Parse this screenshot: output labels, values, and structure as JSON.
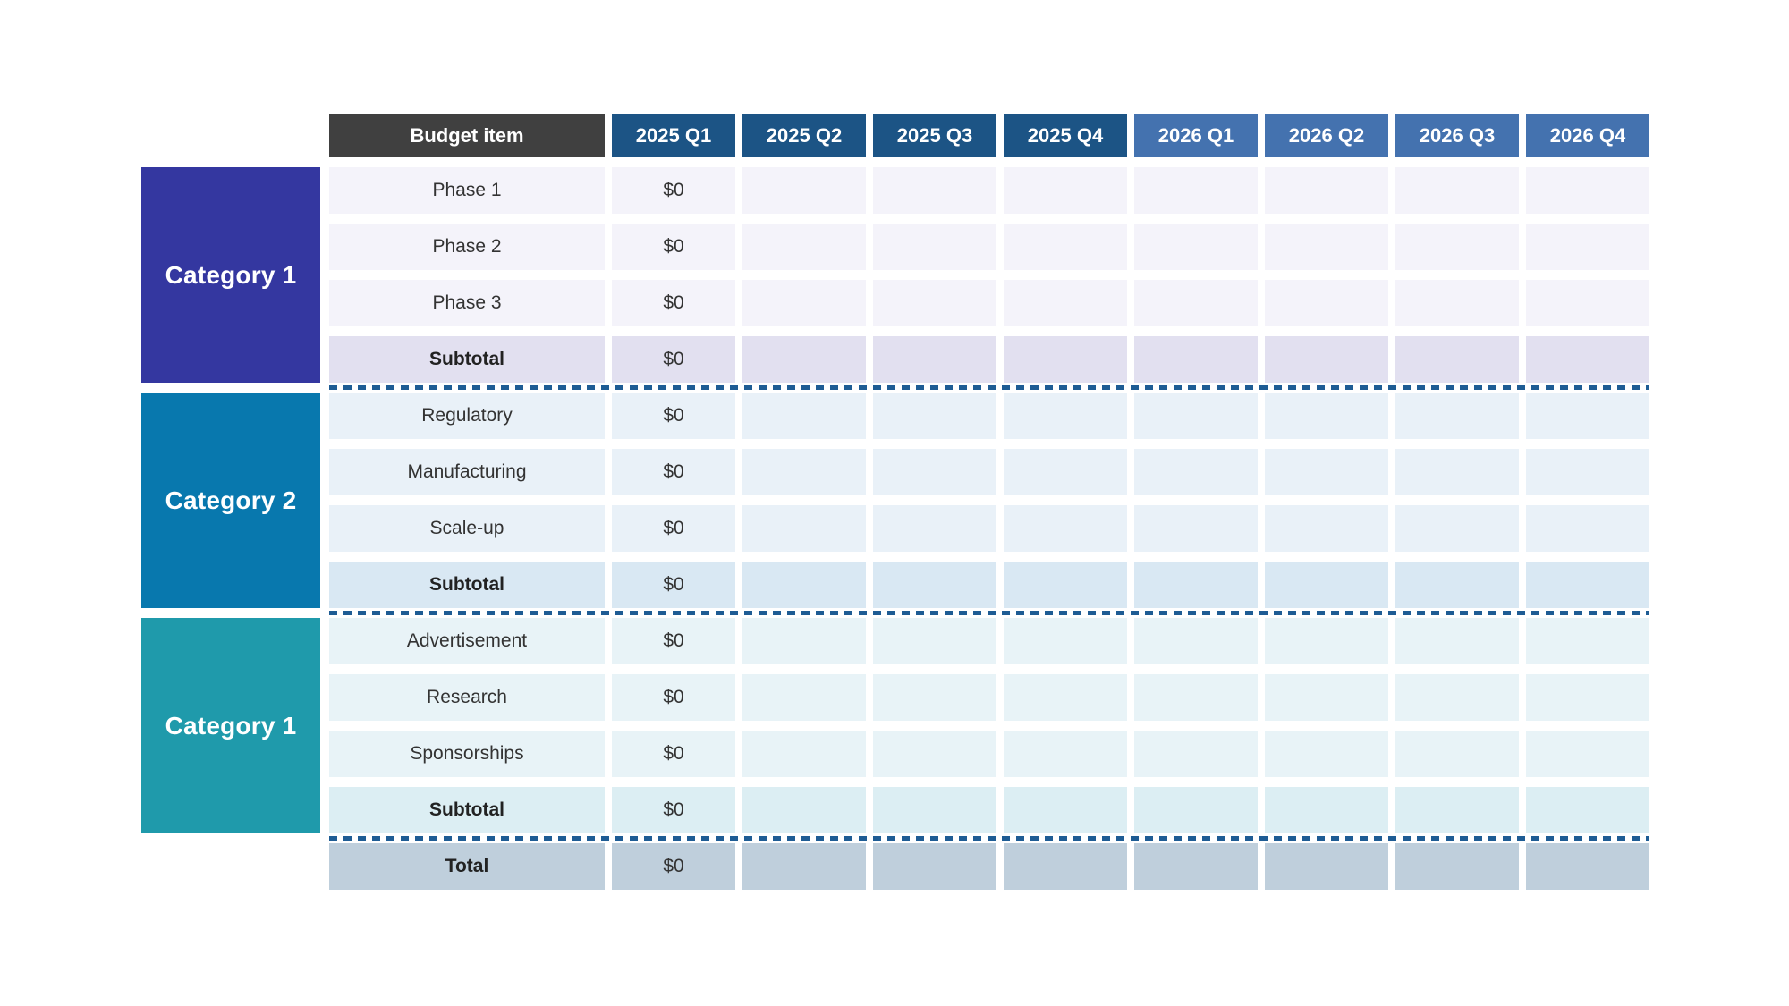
{
  "header": {
    "budget_item": "Budget item",
    "quarters": [
      "2025 Q1",
      "2025 Q2",
      "2025 Q3",
      "2025 Q4",
      "2026 Q1",
      "2026 Q2",
      "2026 Q3",
      "2026 Q4"
    ]
  },
  "sections": [
    {
      "category": "Category 1",
      "rows": [
        {
          "label": "Phase 1",
          "q1": "$0"
        },
        {
          "label": "Phase 2",
          "q1": "$0"
        },
        {
          "label": "Phase 3",
          "q1": "$0"
        }
      ],
      "subtotal": {
        "label": "Subtotal",
        "q1": "$0"
      }
    },
    {
      "category": "Category 2",
      "rows": [
        {
          "label": "Regulatory",
          "q1": "$0"
        },
        {
          "label": "Manufacturing",
          "q1": "$0"
        },
        {
          "label": "Scale-up",
          "q1": "$0"
        }
      ],
      "subtotal": {
        "label": "Subtotal",
        "q1": "$0"
      }
    },
    {
      "category": "Category 1",
      "rows": [
        {
          "label": "Advertisement",
          "q1": "$0"
        },
        {
          "label": "Research",
          "q1": "$0"
        },
        {
          "label": "Sponsorships",
          "q1": "$0"
        }
      ],
      "subtotal": {
        "label": "Subtotal",
        "q1": "$0"
      }
    }
  ],
  "total": {
    "label": "Total",
    "q1": "$0"
  },
  "colors": {
    "header_budget_bg": "#404040",
    "header_2025_bg": "#1C5485",
    "header_2026_bg": "#4472AF",
    "category1_bg": "#3437A0",
    "category2_bg": "#0878AE",
    "category3_bg": "#1F9AAB",
    "section1_row_bg": "#F4F3FA",
    "section1_subtotal_bg": "#E2E0F0",
    "section2_row_bg": "#E9F1F8",
    "section2_subtotal_bg": "#D9E8F3",
    "section3_row_bg": "#E8F3F7",
    "section3_subtotal_bg": "#DCEEF3",
    "total_row_bg": "#BFCFDC",
    "separator_dots": "#1E5C94",
    "header_text": "#FFFFFF",
    "body_text": "#333333"
  }
}
